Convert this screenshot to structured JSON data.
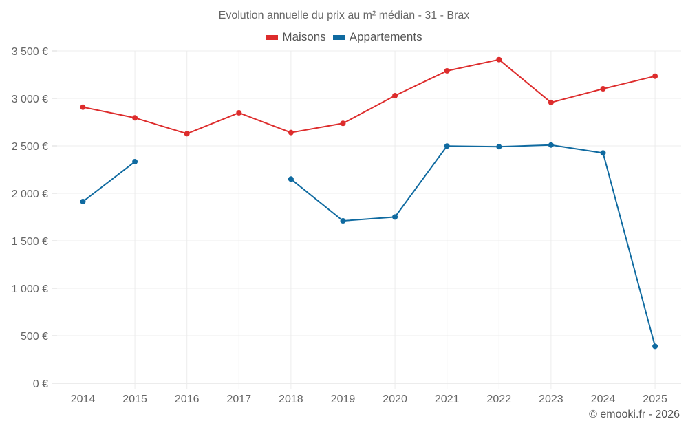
{
  "chart_data": {
    "type": "line",
    "title": "Evolution annuelle du prix au m² médian - 31 - Brax",
    "xlabel": "",
    "ylabel": "",
    "x": [
      "2014",
      "2015",
      "2016",
      "2017",
      "2018",
      "2019",
      "2020",
      "2021",
      "2022",
      "2023",
      "2024",
      "2025"
    ],
    "series": [
      {
        "name": "Maisons",
        "color": "#dd2c2c",
        "values": [
          2908,
          2795,
          2628,
          2848,
          2640,
          2737,
          3029,
          3290,
          3408,
          2957,
          3101,
          3234
        ]
      },
      {
        "name": "Appartements",
        "color": "#0f6aa0",
        "values": [
          1913,
          2333,
          null,
          null,
          2150,
          1710,
          1751,
          2498,
          2491,
          2509,
          2425,
          389
        ]
      }
    ],
    "ylim": [
      0,
      3500
    ],
    "yticks": [
      0,
      500,
      1000,
      1500,
      2000,
      2500,
      3000,
      3500
    ],
    "ytick_labels": [
      "0 €",
      "500 €",
      "1 000 €",
      "1 500 €",
      "2 000 €",
      "2 500 €",
      "3 000 €",
      "3 500 €"
    ],
    "grid": true,
    "legend_position": "top-center"
  },
  "credit": "© emooki.fr - 2026"
}
